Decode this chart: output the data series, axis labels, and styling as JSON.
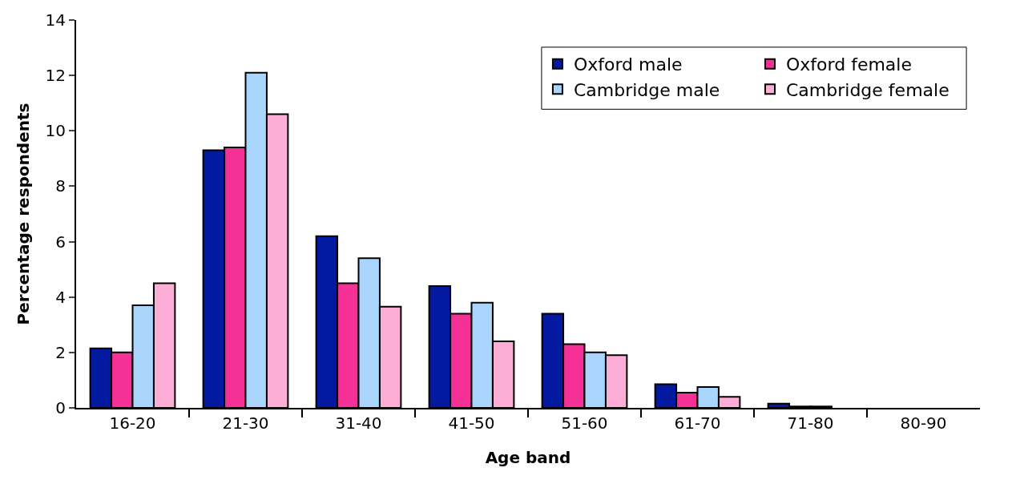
{
  "chart_data": {
    "type": "bar",
    "xlabel": "Age band",
    "ylabel": "Percentage respondents",
    "categories": [
      "16-20",
      "21-30",
      "31-40",
      "41-50",
      "51-60",
      "61-70",
      "71-80",
      "80-90"
    ],
    "series": [
      {
        "name": "Oxford male",
        "color": "#031aa0",
        "values": [
          2.15,
          9.3,
          6.2,
          4.4,
          3.4,
          0.85,
          0.15,
          0
        ]
      },
      {
        "name": "Oxford female",
        "color": "#f53096",
        "values": [
          2.0,
          9.4,
          4.5,
          3.4,
          2.3,
          0.55,
          0.05,
          0
        ]
      },
      {
        "name": "Cambridge male",
        "color": "#aad6fe",
        "values": [
          3.7,
          12.1,
          5.4,
          3.8,
          2.0,
          0.75,
          0.05,
          0
        ]
      },
      {
        "name": "Cambridge female",
        "color": "#fdaed6",
        "values": [
          4.5,
          10.6,
          3.65,
          2.4,
          1.9,
          0.4,
          0,
          0
        ]
      }
    ],
    "ylim": [
      0,
      14
    ],
    "yticks": [
      0,
      2,
      4,
      6,
      8,
      10,
      12,
      14
    ],
    "grid": false,
    "legend": "top right"
  }
}
